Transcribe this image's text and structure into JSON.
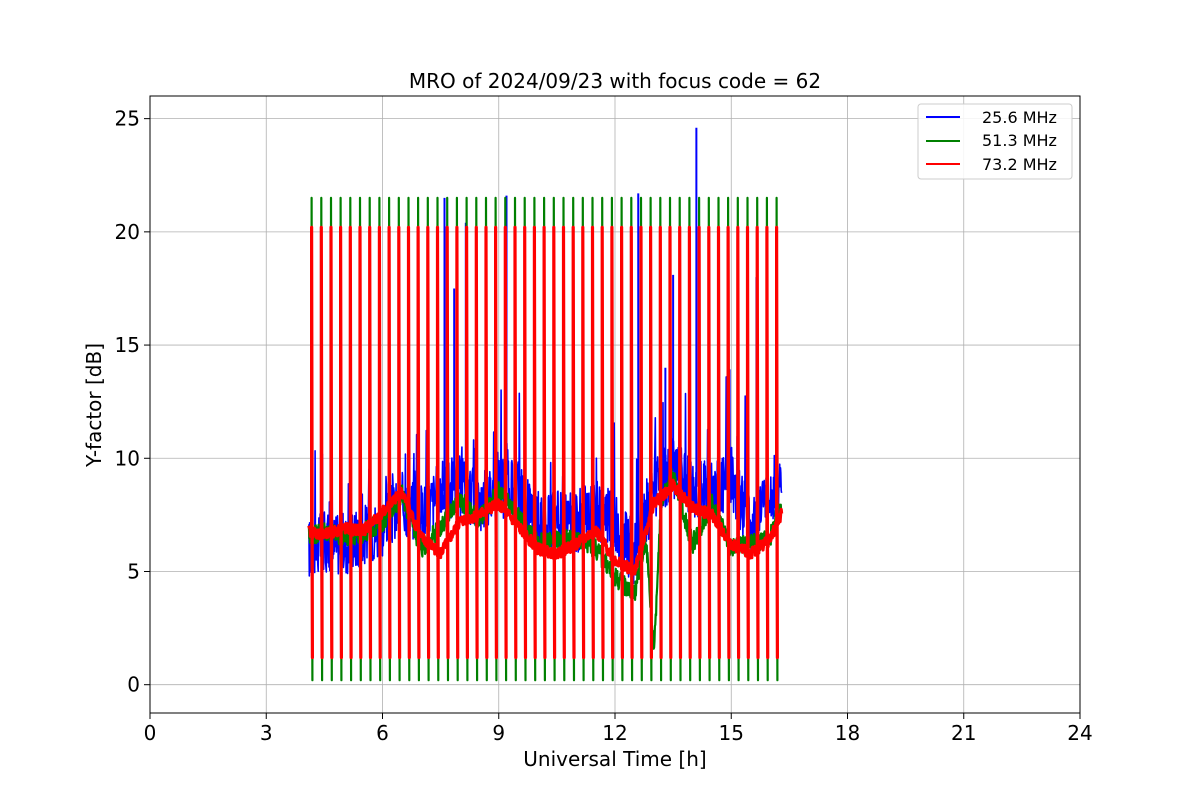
{
  "chart_data": {
    "type": "line",
    "title": "MRO of 2024/09/23 with focus code = 62",
    "xlabel": "Universal Time [h]",
    "ylabel": "Y-factor [dB]",
    "xlim": [
      0,
      24
    ],
    "ylim": [
      -1.25,
      26
    ],
    "xticks": [
      0,
      3,
      6,
      9,
      12,
      15,
      18,
      21,
      24
    ],
    "yticks": [
      0,
      5,
      10,
      15,
      20,
      25
    ],
    "grid": true,
    "legend_position": "upper right",
    "data_range_hours": [
      4.1,
      16.3
    ],
    "calibration_period_h": 0.25,
    "series": [
      {
        "name": "25.6 MHz",
        "legend_label": "25.6 MHz",
        "color": "#0000ff",
        "calibration_high_db": 20.2,
        "calibration_low_db": 1.0,
        "baseline": [
          [
            4.1,
            6.0
          ],
          [
            4.5,
            6.3
          ],
          [
            5.0,
            6.2
          ],
          [
            5.5,
            6.6
          ],
          [
            6.0,
            7.0
          ],
          [
            6.5,
            8.0
          ],
          [
            7.0,
            7.5
          ],
          [
            7.5,
            8.5
          ],
          [
            8.0,
            8.8
          ],
          [
            8.5,
            8.0
          ],
          [
            9.0,
            8.6
          ],
          [
            9.5,
            8.5
          ],
          [
            10.0,
            7.0
          ],
          [
            10.5,
            7.2
          ],
          [
            11.0,
            7.2
          ],
          [
            11.5,
            7.8
          ],
          [
            12.0,
            7.0
          ],
          [
            12.5,
            5.8
          ],
          [
            13.0,
            8.5
          ],
          [
            13.5,
            9.5
          ],
          [
            14.0,
            8.8
          ],
          [
            14.5,
            8.5
          ],
          [
            15.0,
            9.2
          ],
          [
            15.5,
            7.0
          ],
          [
            16.0,
            8.6
          ],
          [
            16.3,
            9.0
          ]
        ],
        "peaks": [
          [
            7.6,
            21.5
          ],
          [
            7.85,
            17.5
          ],
          [
            8.15,
            20.4
          ],
          [
            9.2,
            21.6
          ],
          [
            12.6,
            21.7
          ],
          [
            13.3,
            14.0
          ],
          [
            13.5,
            18.1
          ],
          [
            14.1,
            24.6
          ],
          [
            15.65,
            18.0
          ]
        ]
      },
      {
        "name": "51.3 MHz",
        "legend_label": "51.3 MHz",
        "color": "#008000",
        "calibration_high_db": 21.5,
        "calibration_low_db": 0.2,
        "baseline": [
          [
            4.1,
            6.6
          ],
          [
            4.5,
            6.8
          ],
          [
            5.0,
            6.5
          ],
          [
            5.5,
            6.7
          ],
          [
            6.0,
            7.2
          ],
          [
            6.5,
            8.4
          ],
          [
            7.0,
            6.0
          ],
          [
            7.5,
            7.0
          ],
          [
            8.0,
            8.2
          ],
          [
            8.5,
            7.3
          ],
          [
            9.0,
            8.5
          ],
          [
            9.5,
            7.4
          ],
          [
            10.0,
            6.2
          ],
          [
            10.5,
            6.4
          ],
          [
            11.0,
            6.5
          ],
          [
            11.5,
            6.0
          ],
          [
            12.0,
            4.8
          ],
          [
            12.5,
            4.0
          ],
          [
            12.8,
            6.5
          ],
          [
            13.0,
            1.5
          ],
          [
            13.2,
            8.2
          ],
          [
            13.5,
            9.2
          ],
          [
            14.0,
            6.2
          ],
          [
            14.5,
            8.0
          ],
          [
            15.0,
            6.0
          ],
          [
            15.5,
            6.2
          ],
          [
            16.0,
            6.5
          ],
          [
            16.3,
            8.0
          ]
        ],
        "peaks": []
      },
      {
        "name": "73.2 MHz",
        "legend_label": "73.2 MHz",
        "color": "#ff0000",
        "calibration_high_db": 20.2,
        "calibration_low_db": 1.2,
        "baseline": [
          [
            4.1,
            6.8
          ],
          [
            4.5,
            6.6
          ],
          [
            5.0,
            6.9
          ],
          [
            5.5,
            6.8
          ],
          [
            6.0,
            7.6
          ],
          [
            6.5,
            8.5
          ],
          [
            7.0,
            6.5
          ],
          [
            7.5,
            5.8
          ],
          [
            8.0,
            7.2
          ],
          [
            8.5,
            7.5
          ],
          [
            9.0,
            8.0
          ],
          [
            9.5,
            7.0
          ],
          [
            10.0,
            6.0
          ],
          [
            10.5,
            5.8
          ],
          [
            11.0,
            6.2
          ],
          [
            11.5,
            6.8
          ],
          [
            12.0,
            5.5
          ],
          [
            12.5,
            5.0
          ],
          [
            13.0,
            8.0
          ],
          [
            13.5,
            8.8
          ],
          [
            14.0,
            7.8
          ],
          [
            14.5,
            7.5
          ],
          [
            15.0,
            6.2
          ],
          [
            15.5,
            5.8
          ],
          [
            16.0,
            6.4
          ],
          [
            16.3,
            7.6
          ]
        ],
        "peaks": []
      }
    ]
  }
}
